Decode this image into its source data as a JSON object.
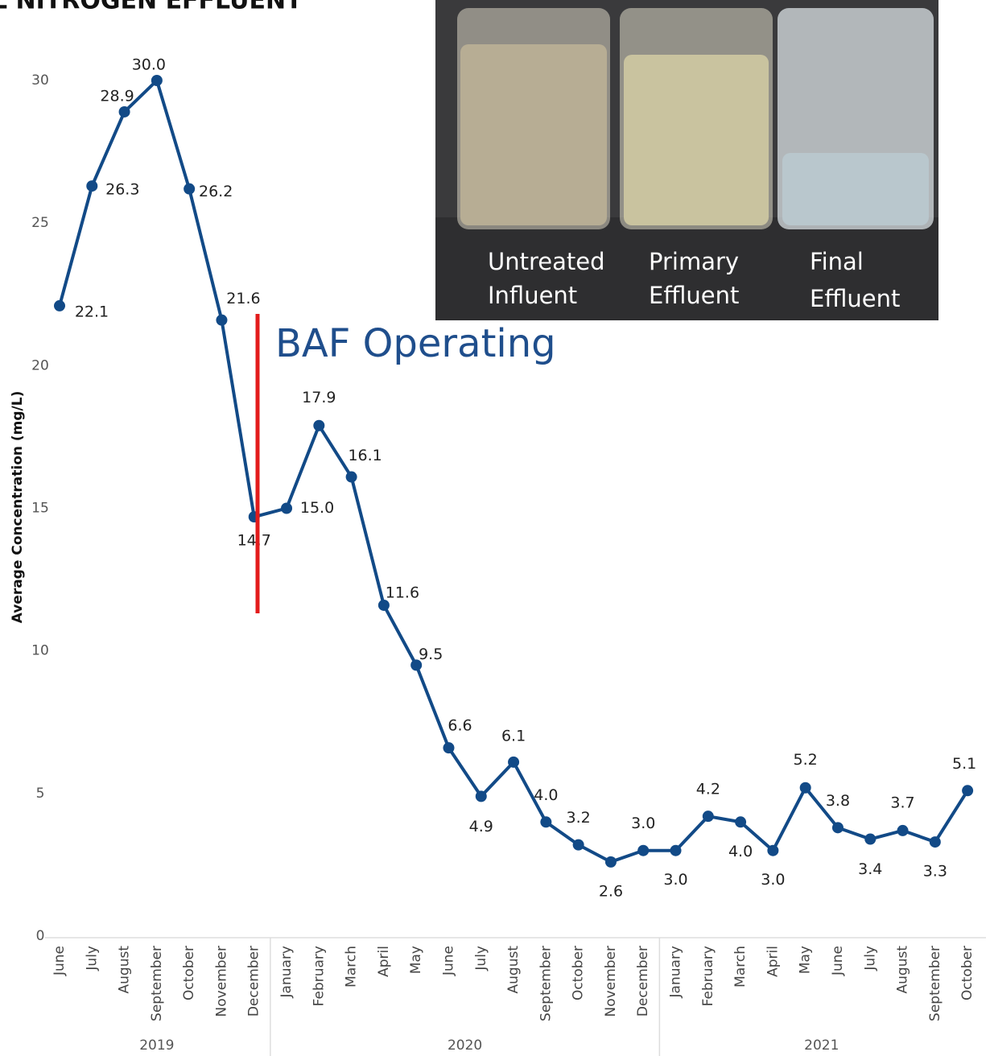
{
  "chart_data": {
    "type": "line",
    "title": "L NITROGEN EFFLUENT",
    "y_label": "Average Concentration (mg/L)",
    "ylim": [
      0,
      30
    ],
    "yticks": [
      0,
      5,
      10,
      15,
      20,
      25,
      30
    ],
    "groups": [
      {
        "label": "2019",
        "categories": [
          "June",
          "July",
          "August",
          "September",
          "October",
          "November",
          "December"
        ]
      },
      {
        "label": "2020",
        "categories": [
          "January",
          "February",
          "March",
          "April",
          "May",
          "June",
          "July",
          "August",
          "September",
          "October",
          "November",
          "December"
        ]
      },
      {
        "label": "2021",
        "categories": [
          "January",
          "February",
          "March",
          "April",
          "May",
          "June",
          "July",
          "August",
          "September",
          "October"
        ]
      }
    ],
    "series": [
      {
        "color": "#124a87",
        "values": [
          22.1,
          26.3,
          28.9,
          30,
          26.2,
          21.6,
          14.7,
          15,
          17.9,
          16.1,
          11.6,
          9.5,
          6.6,
          4.9,
          6.1,
          4,
          3.2,
          2.6,
          3,
          3,
          4.2,
          4,
          3,
          5.2,
          3.8,
          3.4,
          3.7,
          3.3,
          5.1
        ],
        "value_labels": [
          "22.1",
          "26.3",
          "28.9",
          "30.0",
          "26.2",
          "21.6",
          "14.7",
          "15.0",
          "17.9",
          "16.1",
          "11.6",
          "9.5",
          "6.6",
          "4.9",
          "6.1",
          "4.0",
          "3.2",
          "2.6",
          "3.0",
          "3.0",
          "4.2",
          "4.0",
          "3.0",
          "5.2",
          "3.8",
          "3.4",
          "3.7",
          "3.3",
          "5.1"
        ]
      }
    ],
    "annotation": {
      "text": "BAF Operating",
      "color": "#e31b1b",
      "text_color": "#1f4e8c"
    },
    "photo_labels": [
      [
        "Untreated",
        "Influent"
      ],
      [
        "Primary",
        "Effluent"
      ],
      [
        "Final",
        "Effluent"
      ]
    ]
  }
}
